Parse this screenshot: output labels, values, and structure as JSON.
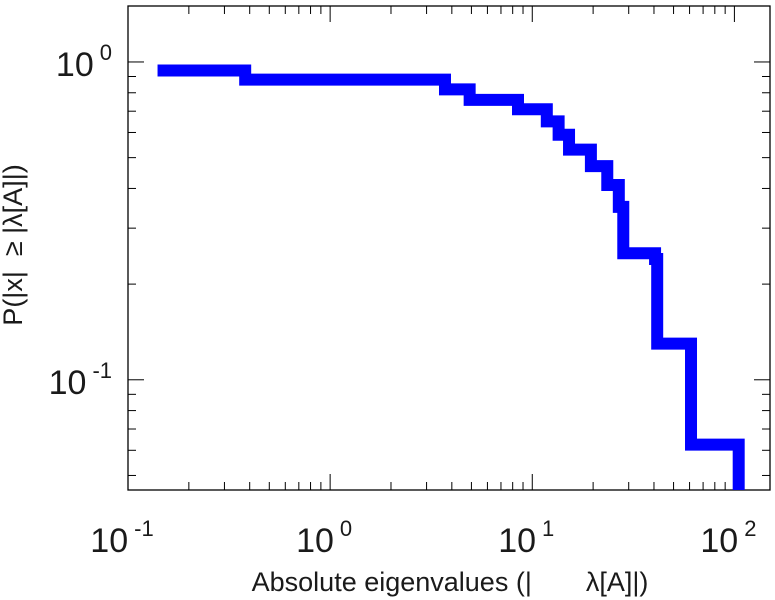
{
  "chart_data": {
    "type": "line",
    "step": true,
    "xscale": "log",
    "yscale": "log",
    "xlim": [
      0.1,
      150
    ],
    "ylim": [
      0.045,
      1.5
    ],
    "grid": false,
    "legend": "none",
    "xlabel": "Absolute eigenvalues (|  λ[A]|)",
    "ylabel": "P(|x|  ≥ |λ[A]|)",
    "x_major_ticks": [
      {
        "value": 0.1,
        "base": "10",
        "exp": "-1"
      },
      {
        "value": 1,
        "base": "10",
        "exp": "0"
      },
      {
        "value": 10,
        "base": "10",
        "exp": "1"
      },
      {
        "value": 100,
        "base": "10",
        "exp": "2"
      }
    ],
    "y_major_ticks": [
      {
        "value": 0.1,
        "base": "10",
        "exp": "-1"
      },
      {
        "value": 1,
        "base": "10",
        "exp": "0"
      }
    ],
    "series": [
      {
        "color": "#0000ff",
        "x": [
          0.14,
          0.38,
          3.7,
          4.9,
          8.5,
          11.8,
          13.5,
          15.2,
          19.5,
          23.5,
          26.8,
          28.2,
          40.5,
          41.5,
          61,
          105
        ],
        "y": [
          0.94,
          0.88,
          0.82,
          0.76,
          0.71,
          0.65,
          0.59,
          0.53,
          0.47,
          0.41,
          0.35,
          0.25,
          0.24,
          0.13,
          0.0625,
          0.045
        ]
      }
    ]
  }
}
